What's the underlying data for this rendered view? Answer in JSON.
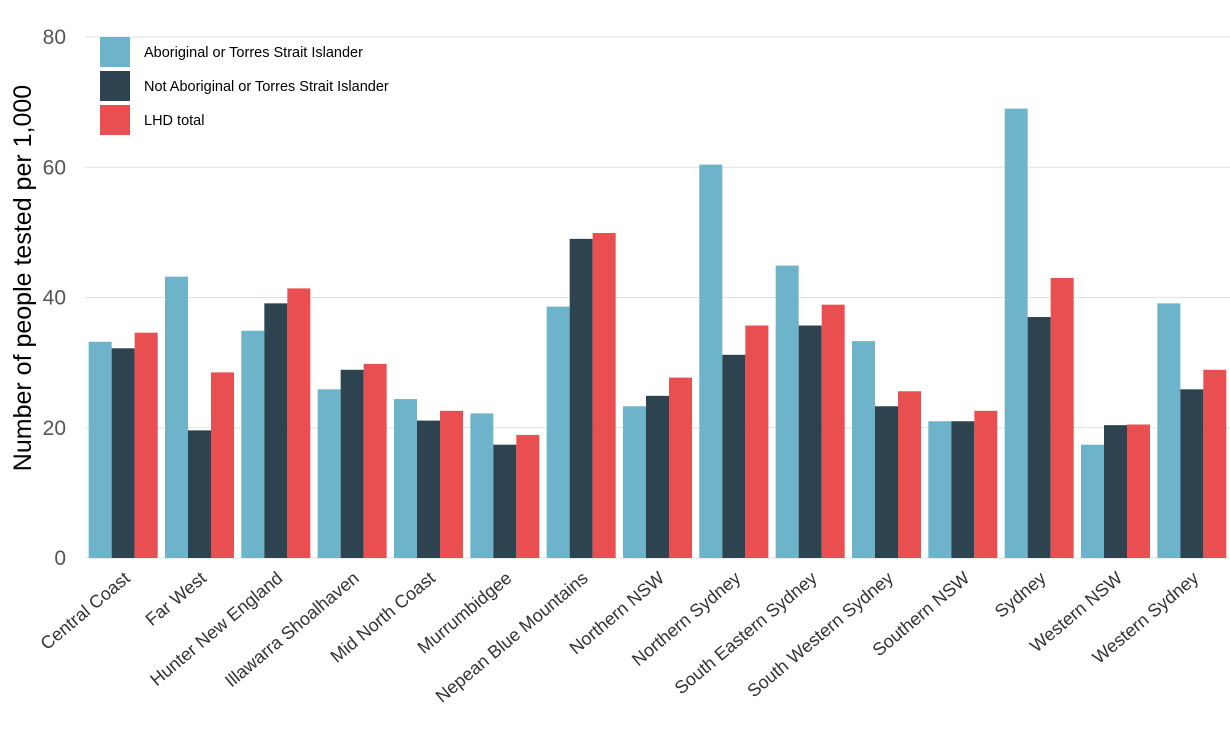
{
  "chart_data": {
    "type": "bar",
    "title": "",
    "ylabel": "Number of people tested per 1,000",
    "xlabel": "",
    "ylim": [
      0,
      80
    ],
    "yticks": [
      0,
      20,
      40,
      60,
      80
    ],
    "grid": true,
    "legend_position": "top-left",
    "categories": [
      "Central Coast",
      "Far West",
      "Hunter New England",
      "Illawarra Shoalhaven",
      "Mid North Coast",
      "Murrumbidgee",
      "Nepean Blue Mountains",
      "Northern NSW",
      "Northern Sydney",
      "South Eastern Sydney",
      "South Western Sydney",
      "Southern NSW",
      "Sydney",
      "Western NSW",
      "Western Sydney"
    ],
    "series": [
      {
        "name": "Aboriginal or Torres Strait Islander",
        "color": "#6db3c9",
        "values": [
          33.2,
          43.2,
          34.9,
          25.9,
          24.4,
          22.2,
          38.6,
          23.3,
          60.4,
          44.9,
          33.3,
          21.0,
          69.0,
          17.4,
          39.1
        ]
      },
      {
        "name": "Not Aboriginal or Torres Strait Islander",
        "color": "#2d434f",
        "values": [
          32.2,
          19.6,
          39.1,
          28.9,
          21.1,
          17.4,
          49.0,
          24.9,
          31.2,
          35.7,
          23.3,
          21.0,
          37.0,
          20.4,
          25.9
        ]
      },
      {
        "name": "LHD total",
        "color": "#e94e50",
        "values": [
          34.6,
          28.5,
          41.4,
          29.8,
          22.6,
          18.9,
          49.9,
          27.7,
          35.7,
          38.9,
          25.6,
          22.6,
          43.0,
          20.5,
          28.9
        ]
      }
    ]
  }
}
